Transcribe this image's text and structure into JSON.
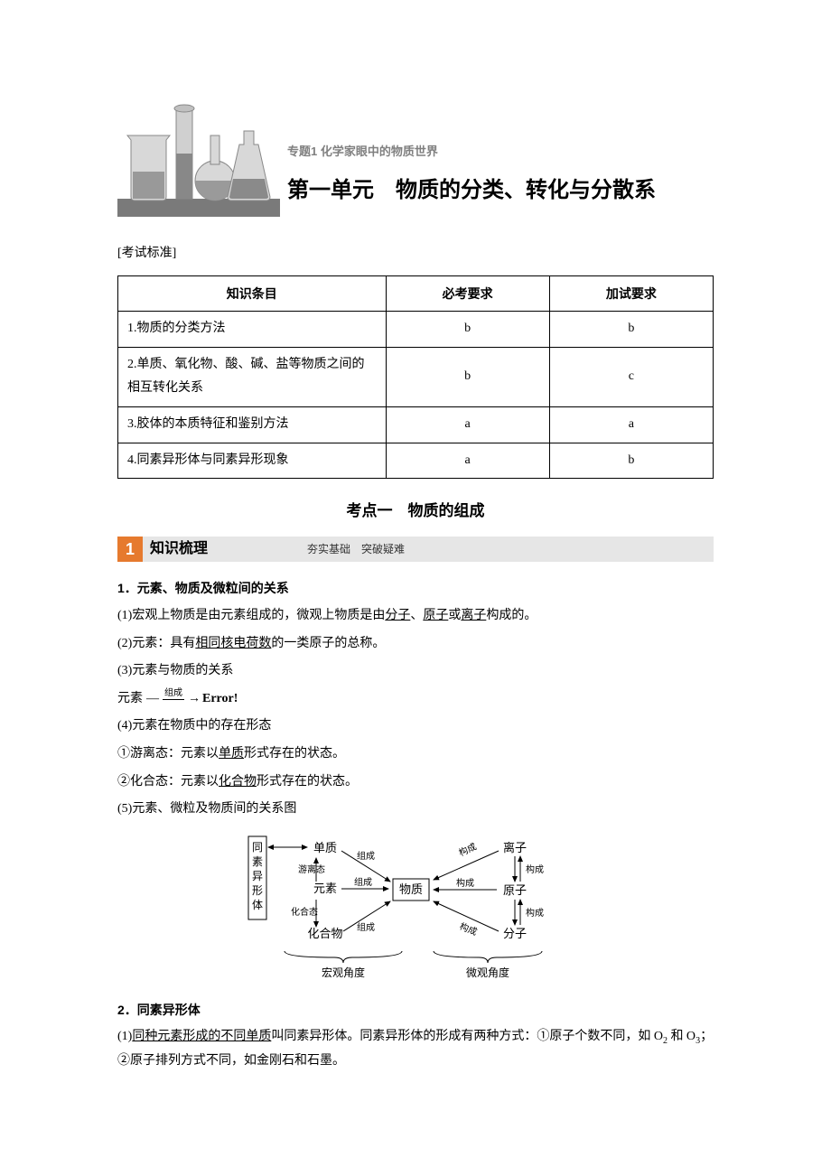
{
  "header": {
    "subtitle": "专题1 化学家眼中的物质世界",
    "unit_title": "第一单元　物质的分类、转化与分散系"
  },
  "test_standard_label": "[考试标准]",
  "table": {
    "headers": [
      "知识条目",
      "必考要求",
      "加试要求"
    ],
    "col_widths": [
      "45%",
      "27.5%",
      "27.5%"
    ],
    "rows": [
      {
        "item": "1.物质的分类方法",
        "req1": "b",
        "req2": "b"
      },
      {
        "item": "2.单质、氧化物、酸、碱、盐等物质之间的相互转化关系",
        "req1": "b",
        "req2": "c"
      },
      {
        "item": "3.胶体的本质特征和鉴别方法",
        "req1": "a",
        "req2": "a"
      },
      {
        "item": "4.同素异形体与同素异形现象",
        "req1": "a",
        "req2": "b"
      }
    ]
  },
  "kaodian_title": "考点一　物质的组成",
  "section_bar": {
    "num": "1",
    "title": "知识梳理",
    "sub": "夯实基础　突破疑难",
    "num_bg": "#e67a2e",
    "bar_bg": "#e6e6e6"
  },
  "s1": {
    "h": "1．元素、物质及微粒间的关系",
    "p1a": "(1)宏观上物质是由元素组成的，微观上物质是由",
    "u1": "分子",
    "sep1": "、",
    "u2": "原子",
    "sep2": "或",
    "u3": "离子",
    "p1b": "构成的。",
    "p2a": "(2)元素：具有",
    "u4": "相同核电荷数",
    "p2b": "的一类原子的总称。",
    "p3": "(3)元素与物质的关系",
    "formula_l": "元素",
    "formula_top": "组成",
    "formula_arrow_l": "—",
    "formula_arrow_r": "→",
    "formula_r": "Error!",
    "p4": "(4)元素在物质中的存在形态",
    "p4_1a": "①游离态：元素以",
    "u5": "单质",
    "p4_1b": "形式存在的状态。",
    "p4_2a": "②化合态：元素以",
    "u6": "化合物",
    "p4_2b": "形式存在的状态。",
    "p5": "(5)元素、微粒及物质间的关系图"
  },
  "diagram": {
    "box_left": "同素异形体",
    "n_danzhi": "单质",
    "n_yuansu": "元素",
    "n_huahewu": "化合物",
    "n_wuzhi": "物质",
    "n_lizi": "离子",
    "n_yuanzi_r": "原子",
    "n_fenzi": "分子",
    "e_zucheng": "组成",
    "e_goucheng": "构成",
    "t_youli": "游离态",
    "t_huahe": "化合态",
    "brace_l": "宏观角度",
    "brace_r": "微观角度"
  },
  "s2": {
    "h": "2．同素异形体",
    "p1a": "(1)",
    "u1": "同种元素形成的不同单质",
    "p1b": "叫同素异形体。同素异形体的形成有两种方式：①原子个数不同，如 O",
    "sub2": "2",
    "mid": " 和 O",
    "sub3": "3",
    "p1c": "；②原子排列方式不同，如金刚石和石墨。"
  }
}
